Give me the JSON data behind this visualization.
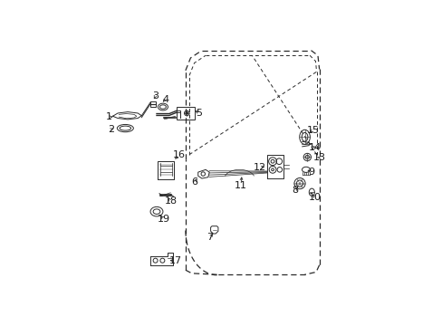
{
  "background_color": "#ffffff",
  "line_color": "#2a2a2a",
  "label_color": "#1a1a1a",
  "fig_width": 4.89,
  "fig_height": 3.6,
  "dpi": 100,
  "door_outer": {
    "x": [
      0.335,
      0.335,
      0.355,
      0.395,
      0.835,
      0.868,
      0.868,
      0.835,
      0.395,
      0.355,
      0.335
    ],
    "y": [
      0.52,
      0.88,
      0.935,
      0.965,
      0.965,
      0.935,
      0.1,
      0.065,
      0.065,
      0.08,
      0.52
    ]
  },
  "door_window": {
    "x": [
      0.345,
      0.345,
      0.375,
      0.42,
      0.84,
      0.86,
      0.86,
      0.84,
      0.58,
      0.345
    ],
    "y": [
      0.54,
      0.855,
      0.918,
      0.948,
      0.948,
      0.918,
      0.52,
      0.52,
      0.54,
      0.54
    ]
  },
  "door_bottom_curve": {
    "x": [
      0.335,
      0.345,
      0.38,
      0.42,
      0.46
    ],
    "y": [
      0.52,
      0.46,
      0.38,
      0.32,
      0.24
    ]
  }
}
